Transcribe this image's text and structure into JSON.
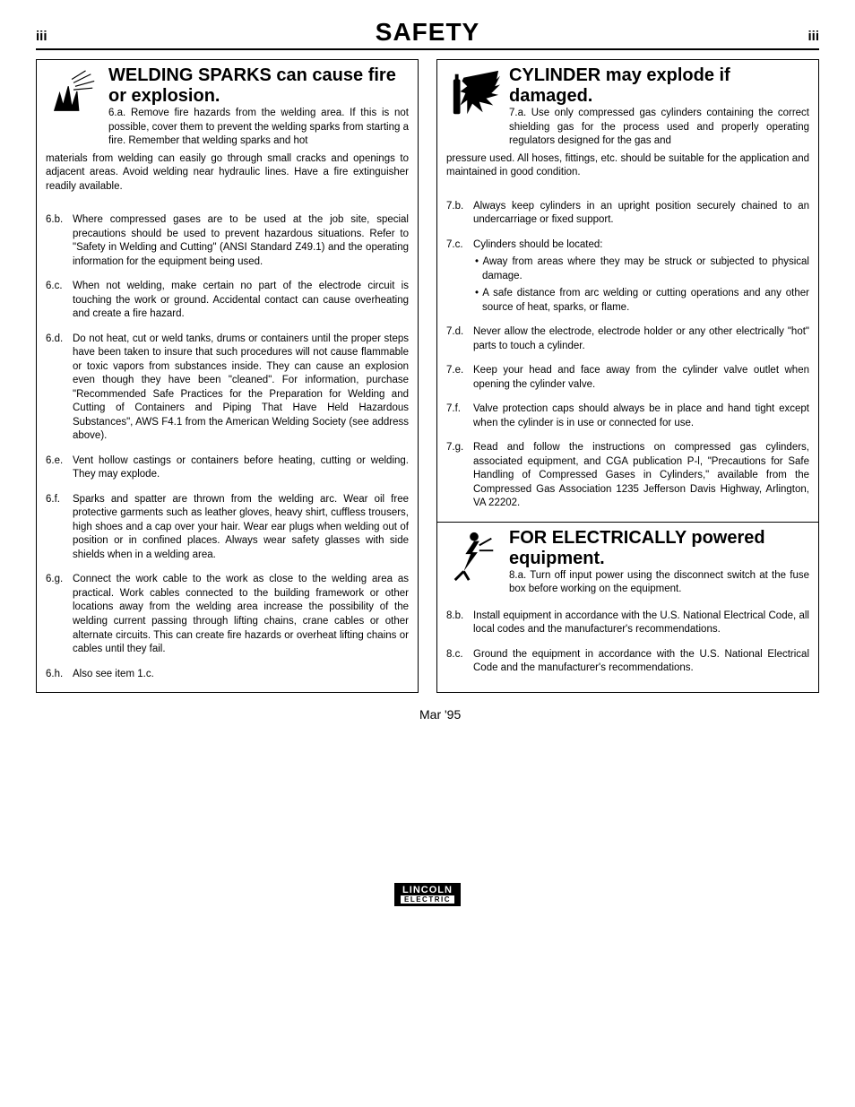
{
  "page": {
    "left_num": "iii",
    "right_num": "iii",
    "title": "SAFETY"
  },
  "left": {
    "section1": {
      "title": "WELDING SPARKS can cause fire or explosion.",
      "icon": "spark-explosion-icon",
      "first_label": "6.a.",
      "first_text": "Remove fire hazards from the welding area. If this is not possible, cover them to prevent the welding sparks from starting a fire. Remember that welding sparks and hot",
      "cont": "materials from welding can easily go through small cracks and openings to adjacent areas. Avoid welding near hydraulic lines. Have a fire extinguisher readily available.",
      "items": [
        {
          "label": "6.b.",
          "text": "Where compressed gases are to be used at the job site, special precautions should be used to prevent hazardous situations. Refer to \"Safety in Welding and Cutting\" (ANSI Standard Z49.1) and the operating information for the equipment being used."
        },
        {
          "label": "6.c.",
          "text": "When not welding, make certain no part of the electrode circuit is touching the work or ground. Accidental contact can cause overheating and create a fire hazard."
        },
        {
          "label": "6.d.",
          "text": "Do not heat, cut or weld tanks, drums or containers until the proper steps have been taken to insure that such procedures will not cause flammable or toxic vapors from substances inside. They can cause an explosion even though they have been \"cleaned\". For information, purchase \"Recommended Safe Practices for the Preparation for Welding and Cutting of Containers and Piping That Have Held Hazardous Substances\", AWS F4.1 from the American Welding Society (see address above)."
        },
        {
          "label": "6.e.",
          "text": "Vent hollow castings or containers before heating, cutting or welding. They may explode."
        },
        {
          "label": "6.f.",
          "text": "Sparks and spatter are thrown from the welding arc. Wear oil free protective garments such as leather gloves, heavy shirt, cuffless trousers, high shoes and a cap over your hair. Wear ear plugs when welding out of position or in confined places. Always wear safety glasses with side shields when in a welding area."
        },
        {
          "label": "6.g.",
          "text": "Connect the work cable to the work as close to the welding area as practical. Work cables connected to the building framework or other locations away from the welding area increase the possibility of the welding current passing through lifting chains, crane cables or other alternate circuits. This can create fire hazards or overheat lifting chains or cables until they fail."
        },
        {
          "label": "6.h.",
          "text": "Also see item 1.c."
        }
      ]
    }
  },
  "right": {
    "section1": {
      "title": "CYLINDER may explode if damaged.",
      "icon": "cylinder-explode-icon",
      "first_label": "7.a.",
      "first_text": "Use only compressed gas cylinders containing the correct shielding gas for the process used and properly operating regulators designed for the gas and",
      "cont": "pressure used. All hoses, fittings, etc. should be suitable for the application and maintained in good condition.",
      "items": [
        {
          "label": "7.b.",
          "text": "Always keep cylinders in an upright position securely chained to an undercarriage or fixed support."
        },
        {
          "label": "7.c.",
          "text": "Cylinders should be located:",
          "bullets": [
            "Away from areas where they may be struck or subjected to physical damage.",
            "A safe distance from arc welding or cutting operations and any other source of heat, sparks, or flame."
          ]
        },
        {
          "label": "7.d.",
          "text": "Never allow the electrode, electrode holder or any other electrically \"hot\" parts to touch a cylinder."
        },
        {
          "label": "7.e.",
          "text": "Keep your head and face away from the cylinder valve outlet when opening the cylinder valve."
        },
        {
          "label": "7.f.",
          "text": "Valve protection caps should always be in place and hand tight except when the cylinder is in use or connected for use."
        },
        {
          "label": "7.g.",
          "text": "Read and follow the instructions on compressed gas cylinders, associated equipment, and CGA publication P-l, \"Precautions for Safe Handling of Compressed Gases in Cylinders,\" available from the Compressed Gas Association 1235 Jefferson Davis Highway, Arlington, VA 22202."
        }
      ]
    },
    "section2": {
      "title": "FOR ELECTRICALLY powered equipment.",
      "icon": "electric-shock-icon",
      "first_label": "8.a.",
      "first_text": "Turn off input power using the disconnect switch at the fuse box before working on the equipment.",
      "items": [
        {
          "label": "8.b.",
          "text": "Install equipment in accordance with the U.S. National Electrical Code, all local codes and the manufacturer's recommendations."
        },
        {
          "label": "8.c.",
          "text": "Ground the equipment in accordance with the U.S. National Electrical Code and the manufacturer's recommendations."
        }
      ]
    }
  },
  "date": "Mar '95",
  "logo": {
    "main": "LINCOLN",
    "sub": "ELECTRIC"
  }
}
